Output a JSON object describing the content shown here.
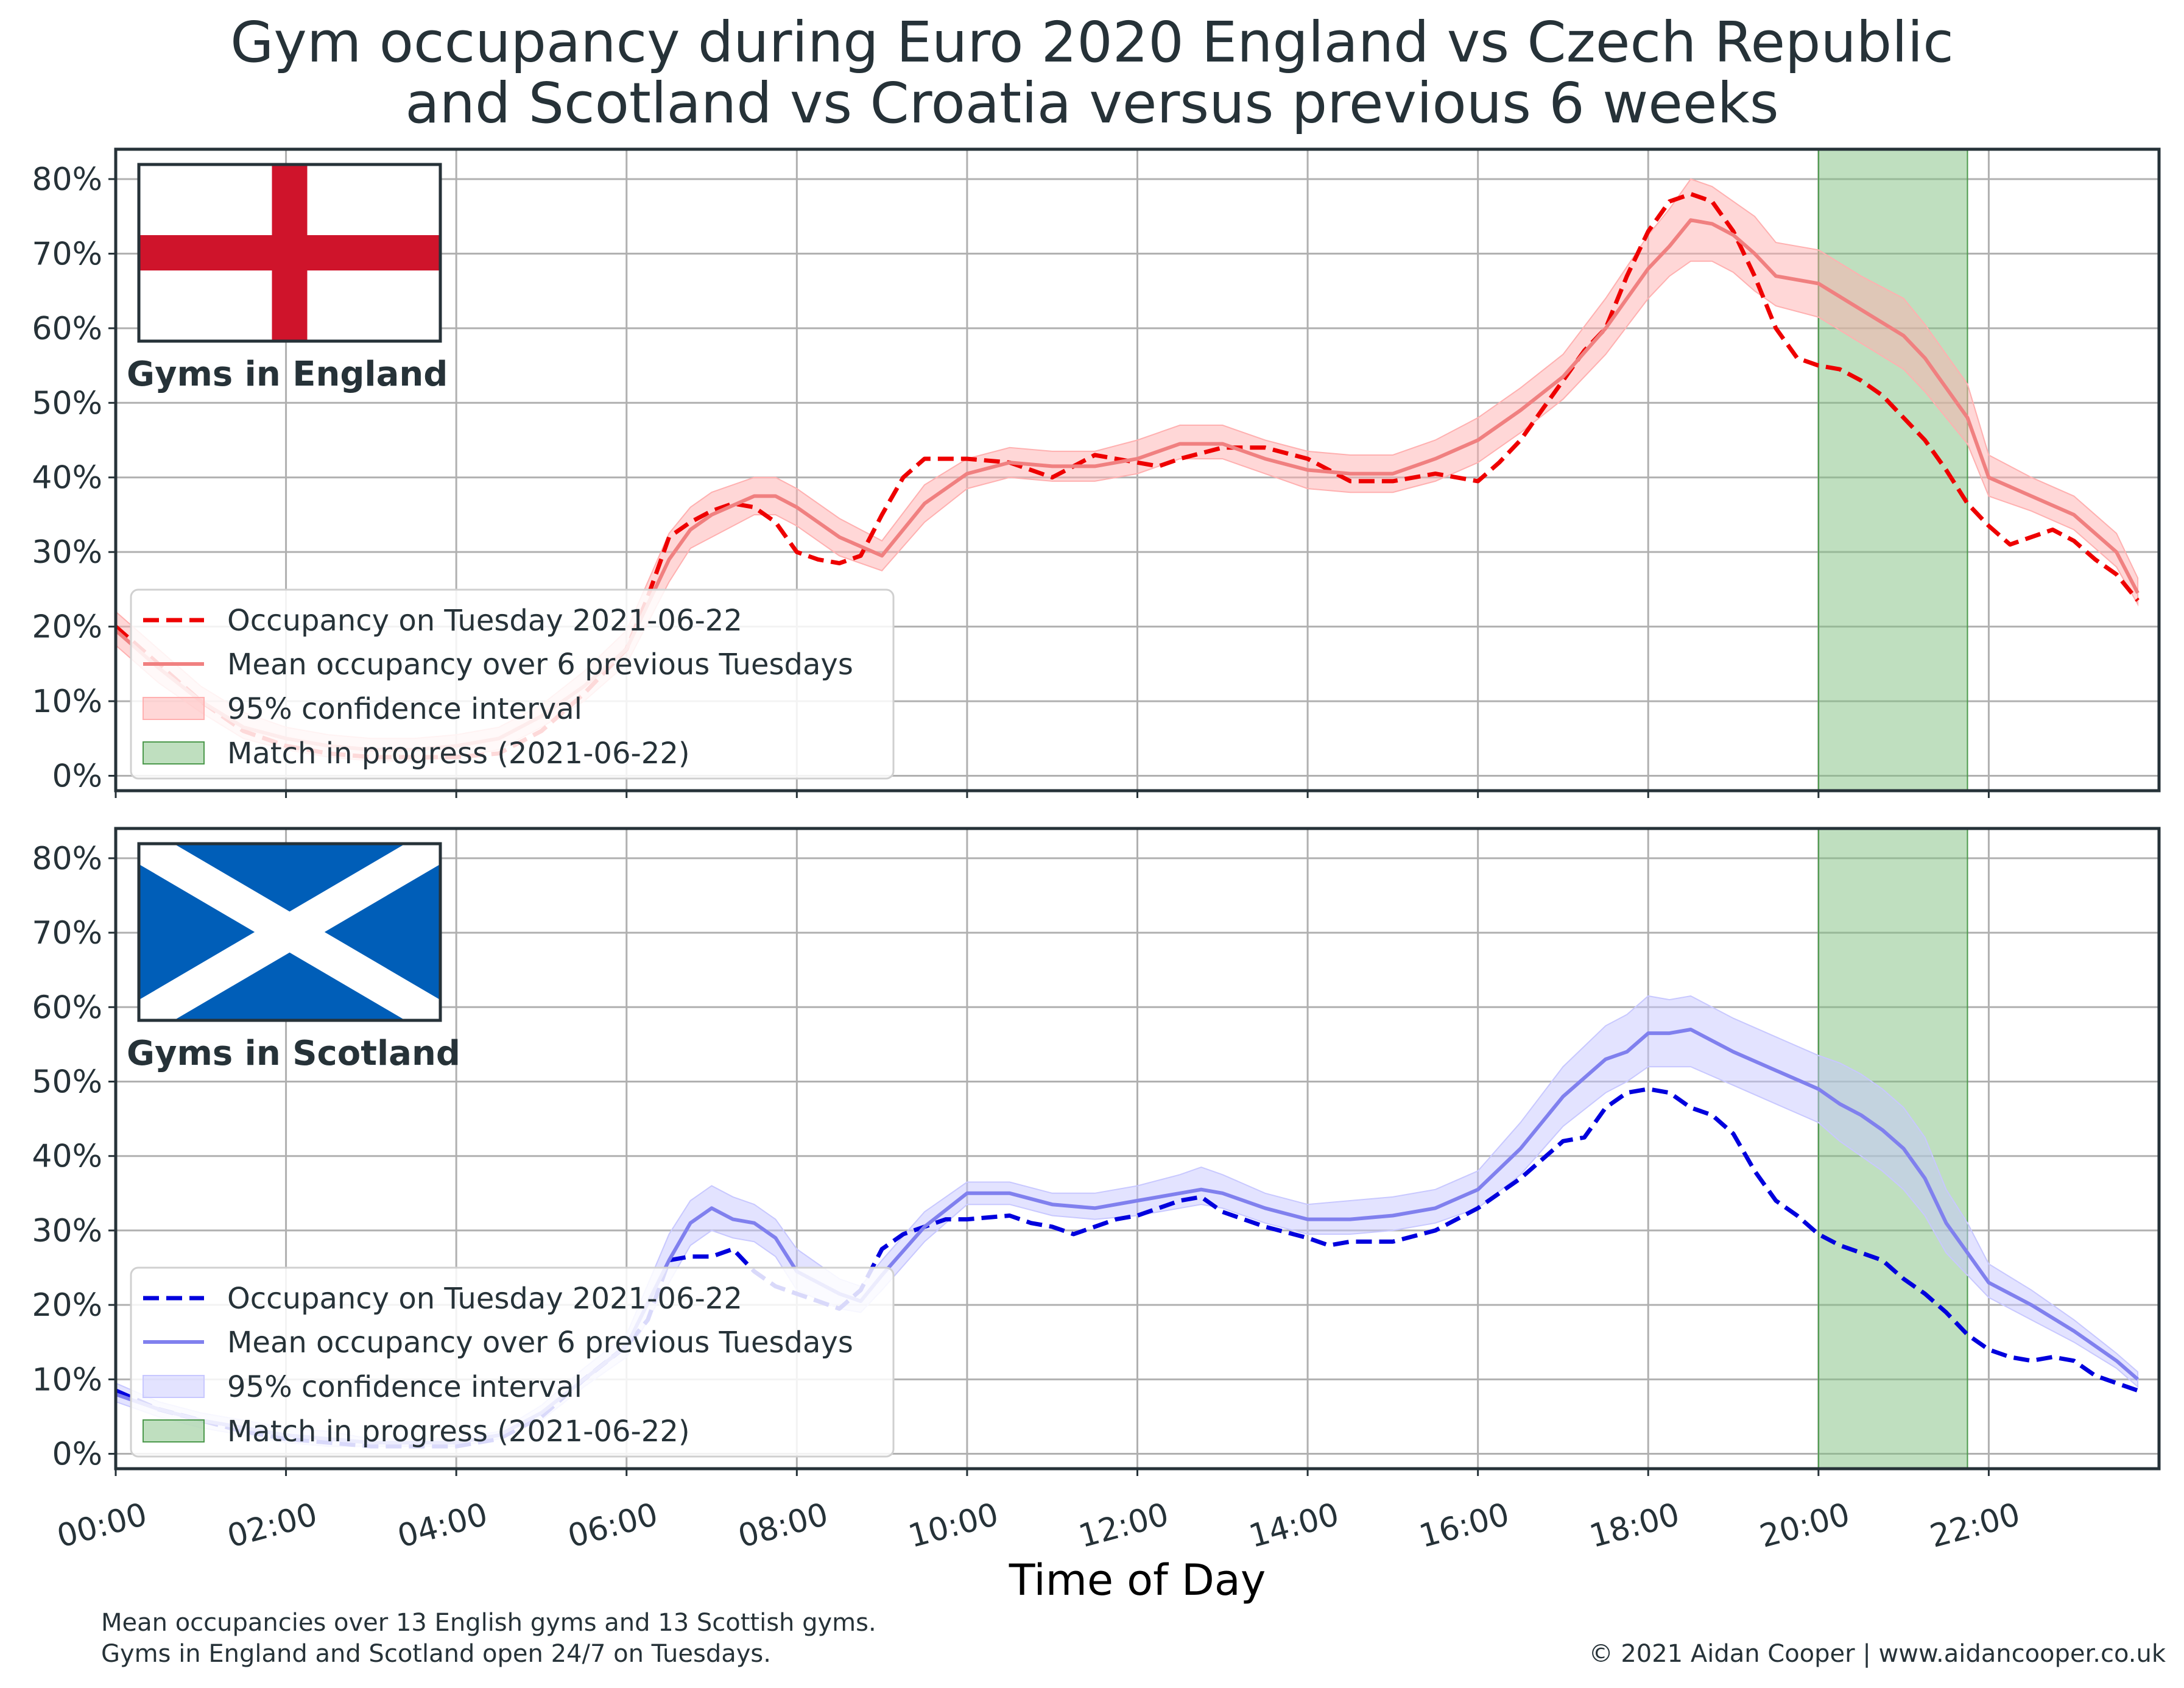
{
  "title_line1": "Gym occupancy during Euro 2020 England vs Czech Republic",
  "title_line2": "and Scotland vs Croatia versus previous 6 weeks",
  "footnote_line1": "Mean occupancies over 13 English gyms and 13 Scottish gyms.",
  "footnote_line2": "Gyms in England and Scotland open 24/7 on Tuesdays.",
  "credit": "© 2021 Aidan Cooper | www.aidancooper.co.uk",
  "chart_data": [
    {
      "type": "line",
      "panel": "England",
      "panel_label": "Gyms in England",
      "flag": "england-flag",
      "colors": {
        "dashed": "#ee0000",
        "mean": "#f08080",
        "ci": "#ffb0b0",
        "match": "#7fbf7f"
      },
      "xlabel": "Time of Day",
      "xlim": [
        0,
        24
      ],
      "ylim": [
        -2,
        84
      ],
      "yticks": [
        0,
        10,
        20,
        30,
        40,
        50,
        60,
        70,
        80
      ],
      "ytick_labels": [
        "0%",
        "10%",
        "20%",
        "30%",
        "40%",
        "50%",
        "60%",
        "70%",
        "80%"
      ],
      "xticks": [
        0,
        2,
        4,
        6,
        8,
        10,
        12,
        14,
        16,
        18,
        20,
        22
      ],
      "xtick_labels": [
        "00:00",
        "02:00",
        "04:00",
        "06:00",
        "08:00",
        "10:00",
        "12:00",
        "14:00",
        "16:00",
        "18:00",
        "20:00",
        "22:00"
      ],
      "grid": true,
      "legend_position": "lower-left",
      "legend": [
        "Occupancy on Tuesday 2021-06-22",
        "Mean occupancy over 6 previous Tuesdays",
        "95% confidence interval",
        "Match in progress (2021-06-22)"
      ],
      "match_span": [
        20,
        21.75
      ],
      "series": [
        {
          "name": "Occupancy on Tuesday 2021-06-22",
          "style": "dashed",
          "x": [
            0,
            0.5,
            1,
            1.5,
            2,
            2.5,
            3,
            3.5,
            4,
            4.5,
            5,
            5.5,
            6,
            6.25,
            6.5,
            6.75,
            7,
            7.25,
            7.5,
            7.75,
            8,
            8.25,
            8.5,
            8.75,
            9,
            9.25,
            9.5,
            9.75,
            10,
            10.5,
            11,
            11.25,
            11.5,
            12,
            12.25,
            12.5,
            13,
            13.5,
            14,
            14.5,
            15,
            15.5,
            16,
            16.25,
            16.5,
            16.75,
            17,
            17.25,
            17.5,
            17.75,
            18,
            18.25,
            18.5,
            18.75,
            19,
            19.25,
            19.5,
            19.75,
            20,
            20.25,
            20.5,
            20.75,
            21,
            21.25,
            21.5,
            21.75,
            22,
            22.25,
            22.5,
            22.75,
            23,
            23.25,
            23.5,
            23.75
          ],
          "values": [
            20,
            15,
            10,
            6,
            4,
            3,
            2.5,
            2.5,
            2.5,
            3,
            6,
            11,
            17,
            24,
            32,
            34,
            35.5,
            36.5,
            36,
            34,
            30,
            29,
            28.5,
            29.5,
            35,
            40,
            42.5,
            42.5,
            42.5,
            42,
            40,
            41.5,
            43,
            42,
            41.5,
            42.5,
            44,
            44,
            42.5,
            39.5,
            39.5,
            40.5,
            39.5,
            42,
            45,
            49,
            53,
            57,
            60,
            67,
            73,
            77,
            78,
            77,
            73,
            67,
            60,
            56,
            55,
            54.5,
            53,
            51,
            48,
            45,
            41,
            36.5,
            33.5,
            31,
            32,
            33,
            31.5,
            29,
            27,
            23.5
          ]
        },
        {
          "name": "Mean occupancy over 6 previous Tuesdays",
          "style": "solid",
          "x": [
            0,
            0.5,
            1,
            1.5,
            2,
            2.5,
            3,
            3.5,
            4,
            4.5,
            5,
            5.5,
            6,
            6.5,
            6.75,
            7,
            7.5,
            7.75,
            8,
            8.5,
            9,
            9.5,
            10,
            10.5,
            11,
            11.5,
            12,
            12.5,
            13,
            13.5,
            14,
            14.5,
            15,
            15.5,
            16,
            16.5,
            17,
            17.5,
            18,
            18.25,
            18.5,
            18.75,
            19,
            19.25,
            19.5,
            20,
            20.5,
            21,
            21.25,
            21.5,
            21.75,
            22,
            22.5,
            23,
            23.5,
            23.75
          ],
          "values": [
            19.5,
            14.5,
            10,
            6.5,
            5,
            4,
            3.5,
            3.5,
            4,
            5,
            8,
            12,
            17,
            29,
            33,
            35,
            37.5,
            37.5,
            36,
            32,
            29.5,
            36.5,
            40.5,
            42,
            41.5,
            41.5,
            42.5,
            44.5,
            44.5,
            42.5,
            41,
            40.5,
            40.5,
            42.5,
            45,
            49,
            53.5,
            60,
            68,
            71,
            74.5,
            74,
            72.5,
            70,
            67,
            66,
            62.5,
            59,
            56,
            52,
            48,
            40,
            37.5,
            35,
            30,
            24.5
          ]
        }
      ],
      "ci": {
        "name": "95% confidence interval",
        "x": [
          0,
          0.5,
          1,
          1.5,
          2,
          2.5,
          3,
          3.5,
          4,
          4.5,
          5,
          5.5,
          6,
          6.5,
          6.75,
          7,
          7.5,
          7.75,
          8,
          8.5,
          9,
          9.5,
          10,
          10.5,
          11,
          11.5,
          12,
          12.5,
          13,
          13.5,
          14,
          14.5,
          15,
          15.5,
          16,
          16.5,
          17,
          17.5,
          18,
          18.25,
          18.5,
          18.75,
          19,
          19.25,
          19.5,
          20,
          20.5,
          21,
          21.25,
          21.5,
          21.75,
          22,
          22.5,
          23,
          23.5,
          23.75
        ],
        "lower": [
          17.5,
          12.5,
          8.5,
          5,
          3.5,
          2.5,
          2,
          2,
          2.5,
          3.5,
          6.5,
          10,
          15,
          26,
          30.5,
          32,
          35,
          35,
          33.5,
          29.5,
          27.5,
          34,
          38.5,
          40,
          39.5,
          39.5,
          40.5,
          42.5,
          42.5,
          40.5,
          38.5,
          38,
          38,
          39.5,
          42,
          46,
          50.5,
          56.5,
          64,
          67,
          69,
          69,
          67.5,
          65,
          63,
          61.5,
          58,
          54.5,
          51.5,
          48,
          44.5,
          37.5,
          35.5,
          33,
          28,
          23
        ]
      },
      "ci_upper": [
        22,
        17,
        12,
        8.5,
        6.5,
        5.5,
        5,
        5,
        5.5,
        6.5,
        9.5,
        14,
        19.5,
        32.5,
        36,
        38,
        40,
        40,
        38.5,
        34.5,
        31.5,
        39,
        42.5,
        44,
        43.5,
        43.5,
        45,
        47,
        47,
        45,
        43.5,
        43,
        43,
        45,
        48,
        52,
        56.5,
        64,
        72.5,
        76,
        80,
        79,
        77,
        75,
        71.5,
        70.5,
        67,
        64,
        60.5,
        56.5,
        52.5,
        43,
        40,
        37.5,
        32.5,
        26.5
      ]
    },
    {
      "type": "line",
      "panel": "Scotland",
      "panel_label": "Gyms in Scotland",
      "flag": "scotland-flag",
      "colors": {
        "dashed": "#0000dd",
        "mean": "#8080ee",
        "ci": "#c8c8ff",
        "match": "#7fbf7f"
      },
      "xlabel": "Time of Day",
      "xlim": [
        0,
        24
      ],
      "ylim": [
        -2,
        84
      ],
      "yticks": [
        0,
        10,
        20,
        30,
        40,
        50,
        60,
        70,
        80
      ],
      "ytick_labels": [
        "0%",
        "10%",
        "20%",
        "30%",
        "40%",
        "50%",
        "60%",
        "70%",
        "80%"
      ],
      "xticks": [
        0,
        2,
        4,
        6,
        8,
        10,
        12,
        14,
        16,
        18,
        20,
        22
      ],
      "xtick_labels": [
        "00:00",
        "02:00",
        "04:00",
        "06:00",
        "08:00",
        "10:00",
        "12:00",
        "14:00",
        "16:00",
        "18:00",
        "20:00",
        "22:00"
      ],
      "grid": true,
      "legend_position": "lower-left",
      "legend": [
        "Occupancy on Tuesday 2021-06-22",
        "Mean occupancy over 6 previous Tuesdays",
        "95% confidence interval",
        "Match in progress (2021-06-22)"
      ],
      "match_span": [
        20,
        21.75
      ],
      "series": [
        {
          "name": "Occupancy on Tuesday 2021-06-22",
          "style": "dashed",
          "x": [
            0,
            0.5,
            1,
            1.5,
            2,
            2.5,
            3,
            3.5,
            4,
            4.5,
            5,
            5.5,
            6,
            6.25,
            6.5,
            6.75,
            7,
            7.25,
            7.5,
            7.75,
            8,
            8.25,
            8.5,
            8.75,
            9,
            9.25,
            9.5,
            9.75,
            10,
            10.5,
            10.75,
            11,
            11.25,
            11.5,
            11.75,
            12,
            12.5,
            12.75,
            13,
            13.5,
            14,
            14.25,
            14.5,
            15,
            15.5,
            16,
            16.5,
            17,
            17.25,
            17.5,
            17.75,
            18,
            18.25,
            18.5,
            18.75,
            19,
            19.25,
            19.5,
            19.75,
            20,
            20.25,
            20.5,
            20.75,
            21,
            21.25,
            21.5,
            21.75,
            22,
            22.25,
            22.5,
            22.75,
            23,
            23.25,
            23.5,
            23.75
          ],
          "values": [
            8.5,
            6,
            4.5,
            3,
            2,
            1.5,
            1,
            1,
            1,
            2,
            5,
            10,
            14.5,
            18,
            26,
            26.5,
            26.5,
            27.5,
            24.5,
            22.5,
            21.5,
            20.5,
            19.5,
            22,
            27.5,
            29.5,
            30.5,
            31.5,
            31.5,
            32,
            31,
            30.5,
            29.5,
            30.5,
            31.5,
            32,
            34,
            34.5,
            32.5,
            30.5,
            29,
            28,
            28.5,
            28.5,
            30,
            33,
            37,
            42,
            42.5,
            46.5,
            48.5,
            49,
            48.5,
            46.5,
            45.5,
            43,
            38,
            34,
            32,
            29.5,
            28,
            27,
            26,
            23.5,
            21.5,
            19,
            16,
            14,
            13,
            12.5,
            13,
            12.5,
            10.5,
            9.5,
            8.5
          ]
        },
        {
          "name": "Mean occupancy over 6 previous Tuesdays",
          "style": "solid",
          "x": [
            0,
            0.5,
            1,
            1.5,
            2,
            2.5,
            3,
            3.5,
            4,
            4.5,
            5,
            5.5,
            6,
            6.5,
            6.75,
            7,
            7.25,
            7.5,
            7.75,
            8,
            8.5,
            8.75,
            9,
            9.5,
            10,
            10.5,
            11,
            11.5,
            12,
            12.5,
            12.75,
            13,
            13.5,
            14,
            14.5,
            15,
            15.5,
            16,
            16.5,
            17,
            17.5,
            17.75,
            18,
            18.25,
            18.5,
            19,
            19.5,
            20,
            20.25,
            20.5,
            20.75,
            21,
            21.25,
            21.5,
            21.75,
            22,
            22.5,
            23,
            23.5,
            23.75
          ],
          "values": [
            8,
            6,
            4.5,
            3.5,
            2.5,
            2,
            1.5,
            1.5,
            1.5,
            2.5,
            5.5,
            10,
            14.5,
            26,
            31,
            33,
            31.5,
            31,
            29,
            24.5,
            21.5,
            20.5,
            24,
            30.5,
            35,
            35,
            33.5,
            33,
            34,
            35,
            35.5,
            35,
            33,
            31.5,
            31.5,
            32,
            33,
            35.5,
            41,
            48,
            53,
            54,
            56.5,
            56.5,
            57,
            54,
            51.5,
            49,
            47,
            45.5,
            43.5,
            41,
            37,
            31,
            27,
            23,
            20,
            16.5,
            12.5,
            10
          ]
        }
      ],
      "ci": {
        "name": "95% confidence interval",
        "x": [
          0,
          0.5,
          1,
          1.5,
          2,
          2.5,
          3,
          3.5,
          4,
          4.5,
          5,
          5.5,
          6,
          6.5,
          6.75,
          7,
          7.25,
          7.5,
          7.75,
          8,
          8.5,
          8.75,
          9,
          9.5,
          10,
          10.5,
          11,
          11.5,
          12,
          12.5,
          12.75,
          13,
          13.5,
          14,
          14.5,
          15,
          15.5,
          16,
          16.5,
          17,
          17.5,
          17.75,
          18,
          18.25,
          18.5,
          19,
          19.5,
          20,
          20.25,
          20.5,
          20.75,
          21,
          21.25,
          21.5,
          21.75,
          22,
          22.5,
          23,
          23.5,
          23.75
        ],
        "lower": [
          7,
          5,
          3.5,
          2.5,
          1.5,
          1,
          1,
          1,
          1,
          2,
          4.5,
          9,
          13,
          23,
          28,
          30,
          29,
          28.5,
          26.5,
          22,
          19.5,
          19,
          22,
          28.5,
          33.5,
          33.5,
          32,
          31.5,
          32,
          33,
          33.5,
          33,
          31,
          29.5,
          29.5,
          30,
          31,
          33,
          37.5,
          44,
          48.5,
          50,
          52,
          52,
          52,
          49.5,
          47,
          44.5,
          42,
          40,
          38,
          35.5,
          32,
          27,
          24,
          21,
          18,
          15,
          11.5,
          9
        ]
      },
      "ci_upper": [
        9.5,
        7,
        5.5,
        4.5,
        3.5,
        3,
        2,
        2,
        2,
        3,
        6.5,
        11.5,
        16,
        29.5,
        34,
        36,
        34.5,
        33.5,
        31.5,
        27.5,
        23.5,
        22.5,
        26,
        32.5,
        36.5,
        36.5,
        35,
        35,
        36,
        37.5,
        38.5,
        37.5,
        35,
        33.5,
        34,
        34.5,
        35.5,
        38,
        44.5,
        52,
        57.5,
        59,
        61.5,
        61,
        61.5,
        58.5,
        56,
        53.5,
        52.5,
        51,
        49,
        46.5,
        42.5,
        35.5,
        31,
        25.5,
        22,
        18,
        13.5,
        11
      ]
    }
  ]
}
